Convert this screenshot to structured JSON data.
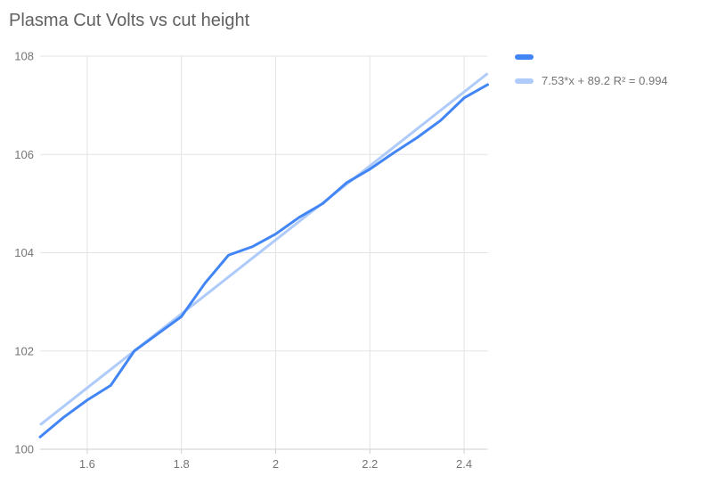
{
  "chart": {
    "title": "Plasma Cut Volts vs cut height",
    "legend": {
      "series_label": "",
      "trendline_label": "7.53*x + 89.2 R² = 0.994"
    }
  },
  "colors": {
    "background": "#ffffff",
    "series": "#4285f4",
    "trendline": "#aecbfa",
    "gridline": "#e3e3e3",
    "axis_line": "#cfcfcf",
    "title_text": "#616161",
    "axis_text": "#757575",
    "legend_text": "#757575"
  },
  "chart_data": {
    "type": "line",
    "title": "Plasma Cut Volts vs cut height",
    "xlabel": "",
    "ylabel": "",
    "xlim": [
      1.5,
      2.45
    ],
    "ylim": [
      100,
      108
    ],
    "grid": true,
    "legend_position": "right-top",
    "x_ticks": [
      1.6,
      1.8,
      2,
      2.2,
      2.4
    ],
    "x_tick_labels": [
      "1.6",
      "1.8",
      "2",
      "2.2",
      "2.4"
    ],
    "y_ticks": [
      100,
      102,
      104,
      106,
      108
    ],
    "y_tick_labels": [
      "100",
      "102",
      "104",
      "106",
      "108"
    ],
    "x": [
      1.5,
      1.55,
      1.6,
      1.65,
      1.7,
      1.75,
      1.8,
      1.85,
      1.9,
      1.95,
      2.0,
      2.05,
      2.1,
      2.15,
      2.2,
      2.25,
      2.3,
      2.35,
      2.4,
      2.45
    ],
    "series": [
      {
        "name": "",
        "values": [
          100.25,
          100.65,
          101.0,
          101.3,
          102.0,
          102.35,
          102.7,
          103.38,
          103.95,
          104.12,
          104.38,
          104.72,
          105.0,
          105.42,
          105.7,
          106.03,
          106.34,
          106.69,
          107.15,
          107.42
        ]
      }
    ],
    "trendline": {
      "slope": 7.53,
      "intercept": 89.2,
      "r2": 0.994,
      "label": "7.53*x + 89.2 R² = 0.994"
    }
  }
}
